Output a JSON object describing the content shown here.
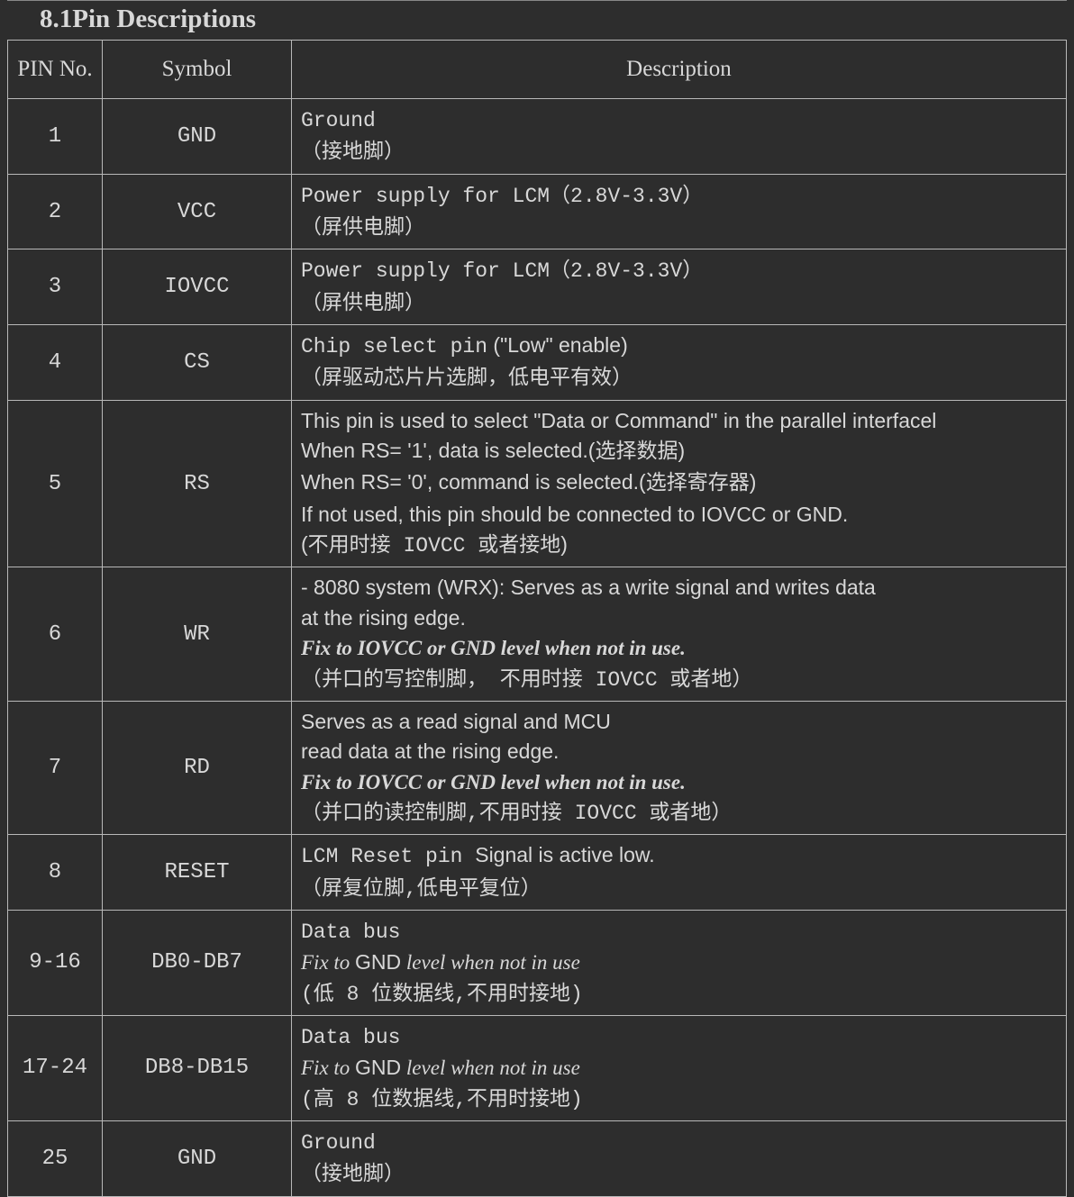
{
  "section": {
    "title": "8.1Pin Descriptions"
  },
  "table": {
    "headers": {
      "pin": "PIN No.",
      "symbol": "Symbol",
      "desc": "Description"
    },
    "rows": [
      {
        "pin": "1",
        "symbol": "GND",
        "desc": [
          {
            "segs": [
              {
                "t": "Ground",
                "cls": "mono"
              }
            ]
          },
          {
            "segs": [
              {
                "t": "（接地脚）",
                "cls": "mono"
              }
            ]
          }
        ]
      },
      {
        "pin": "2",
        "symbol": "VCC",
        "desc": [
          {
            "segs": [
              {
                "t": "Power supply for LCM",
                "cls": "mono"
              },
              {
                "t": "（2.8V-3.3V）",
                "cls": "mono"
              }
            ]
          },
          {
            "segs": [
              {
                "t": "（屏供电脚）",
                "cls": "mono"
              }
            ]
          }
        ]
      },
      {
        "pin": "3",
        "symbol": "IOVCC",
        "desc": [
          {
            "segs": [
              {
                "t": "Power supply for LCM",
                "cls": "mono"
              },
              {
                "t": "（2.8V-3.3V）",
                "cls": "mono"
              }
            ]
          },
          {
            "segs": [
              {
                "t": "（屏供电脚）",
                "cls": "mono"
              }
            ]
          }
        ]
      },
      {
        "pin": "4",
        "symbol": "CS",
        "desc": [
          {
            "segs": [
              {
                "t": "Chip select pin",
                "cls": "mono"
              },
              {
                "t": " (\"Low\" enable)",
                "cls": "arial"
              }
            ]
          },
          {
            "segs": [
              {
                "t": "（屏驱动芯片片选脚，低电平有效）",
                "cls": "mono"
              }
            ]
          }
        ]
      },
      {
        "pin": "5",
        "symbol": "RS",
        "desc": [
          {
            "segs": [
              {
                "t": "This pin is used to select \"Data or Command\" in the parallel interfacel",
                "cls": "arial"
              }
            ]
          },
          {
            "segs": [
              {
                "t": "When RS= '1', data is selected.(",
                "cls": "arial"
              },
              {
                "t": "选择数据",
                "cls": "mono"
              },
              {
                "t": ")",
                "cls": "arial"
              }
            ]
          },
          {
            "segs": [
              {
                "t": "When RS= '0', command is selected.(",
                "cls": "arial"
              },
              {
                "t": "选择寄存器",
                "cls": "mono"
              },
              {
                "t": ")",
                "cls": "arial"
              }
            ]
          },
          {
            "segs": [
              {
                "t": "If not used, this pin should be connected to IOVCC or GND.",
                "cls": "arial"
              }
            ]
          },
          {
            "segs": [
              {
                "t": "(",
                "cls": "arial"
              },
              {
                "t": "不用时接 IOVCC 或者接地",
                "cls": "mono"
              },
              {
                "t": ")",
                "cls": "arial"
              }
            ]
          }
        ]
      },
      {
        "pin": "6",
        "symbol": "WR",
        "desc": [
          {
            "segs": [
              {
                "t": "- 8080 system (WRX): Serves as a write signal and writes data",
                "cls": "arial"
              }
            ]
          },
          {
            "segs": [
              {
                "t": "at the rising edge.",
                "cls": "arial"
              }
            ]
          },
          {
            "segs": [
              {
                "t": "Fix to IOVCC or GND level when not in use.",
                "cls": "times bolditalic"
              }
            ]
          },
          {
            "segs": [
              {
                "t": "（并口的写控制脚， 不用时接 IOVCC 或者地）",
                "cls": "mono"
              }
            ]
          }
        ]
      },
      {
        "pin": "7",
        "symbol": "RD",
        "desc": [
          {
            "segs": [
              {
                "t": "Serves as a read signal and MCU",
                "cls": "arial"
              }
            ]
          },
          {
            "segs": [
              {
                "t": "read data at the rising edge.",
                "cls": "arial"
              }
            ]
          },
          {
            "segs": [
              {
                "t": "Fix to IOVCC or GND level when not in use.",
                "cls": "times bolditalic"
              }
            ]
          },
          {
            "segs": [
              {
                "t": "（并口的读控制脚,不用时接 IOVCC 或者地）",
                "cls": "mono"
              }
            ]
          }
        ]
      },
      {
        "pin": "8",
        "symbol": "RESET",
        "desc": [
          {
            "segs": [
              {
                "t": "LCM Reset pin ",
                "cls": "mono"
              },
              {
                "t": " Signal is active low.",
                "cls": "arial"
              }
            ]
          },
          {
            "segs": [
              {
                "t": "（屏复位脚,低电平复位）",
                "cls": "mono"
              }
            ]
          }
        ]
      },
      {
        "pin": "9-16",
        "symbol": "DB0-DB7",
        "desc": [
          {
            "segs": [
              {
                "t": "Data bus",
                "cls": "mono"
              }
            ]
          },
          {
            "segs": [
              {
                "t": "Fix to ",
                "cls": "times italic"
              },
              {
                "t": "GND",
                "cls": "arial"
              },
              {
                "t": " level when not in use",
                "cls": "times italic"
              }
            ]
          },
          {
            "segs": [
              {
                "t": "(低 8 位数据线,不用时接地)",
                "cls": "mono"
              }
            ]
          }
        ]
      },
      {
        "pin": "17-24",
        "symbol": "DB8-DB15",
        "desc": [
          {
            "segs": [
              {
                "t": "Data bus",
                "cls": "mono"
              }
            ]
          },
          {
            "segs": [
              {
                "t": "Fix to ",
                "cls": "times italic"
              },
              {
                "t": "GND",
                "cls": "arial"
              },
              {
                "t": " level when not in use",
                "cls": "times italic"
              }
            ]
          },
          {
            "segs": [
              {
                "t": "(高 8 位数据线,不用时接地)",
                "cls": "mono"
              }
            ]
          }
        ]
      },
      {
        "pin": "25",
        "symbol": "GND",
        "desc": [
          {
            "segs": [
              {
                "t": "Ground",
                "cls": "mono"
              }
            ]
          },
          {
            "segs": [
              {
                "t": "（接地脚）",
                "cls": "mono"
              }
            ]
          }
        ]
      }
    ]
  },
  "style": {
    "background": "#2d2d2d",
    "text_color": "#d8d8d8",
    "border_color": "#b8b8b8",
    "title_fontsize": 29,
    "header_fontsize": 25,
    "cell_fontsize": 23
  }
}
